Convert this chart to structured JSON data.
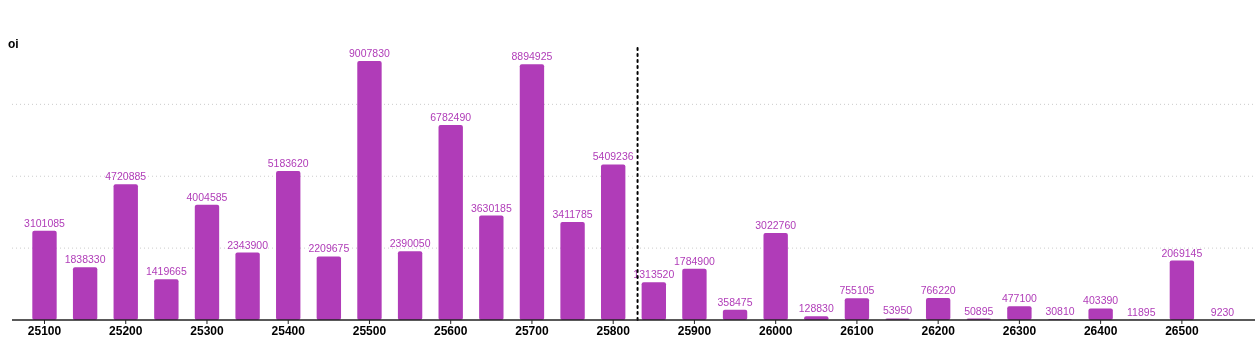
{
  "chart_data": {
    "type": "bar",
    "ylabel": "oi",
    "x": [
      25100,
      25150,
      25200,
      25250,
      25300,
      25350,
      25400,
      25450,
      25500,
      25550,
      25600,
      25650,
      25700,
      25750,
      25800,
      25850,
      25900,
      25950,
      26000,
      26050,
      26100,
      26150,
      26200,
      26250,
      26300,
      26350,
      26400,
      26450,
      26500,
      26550
    ],
    "values": [
      3101085,
      1838330,
      4720885,
      1419665,
      4004585,
      2343900,
      5183620,
      2209675,
      9007830,
      2390050,
      6782490,
      3630185,
      8894925,
      3411785,
      5409236,
      1313520,
      1784900,
      358475,
      3022760,
      128830,
      755105,
      53950,
      766220,
      50895,
      477100,
      30810,
      403390,
      11895,
      2069145,
      9230
    ],
    "color": "#b03cb8",
    "xlim": [
      25060,
      26590
    ],
    "xticks": [
      25100,
      25200,
      25300,
      25400,
      25500,
      25600,
      25700,
      25800,
      25900,
      26000,
      26100,
      26200,
      26300,
      26400,
      26500
    ],
    "yticks": [
      {
        "value": 0,
        "label": null
      },
      {
        "value": 2500000,
        "label": null
      },
      {
        "value": 5000000,
        "label": null
      },
      {
        "value": 7500000,
        "label": null
      }
    ],
    "tick_labels": "x",
    "grid": "y",
    "data_labels": true,
    "ref_lines": [
      {
        "axis": "x",
        "value": 25830,
        "color": "#000000",
        "line_style": "dotted"
      }
    ]
  }
}
